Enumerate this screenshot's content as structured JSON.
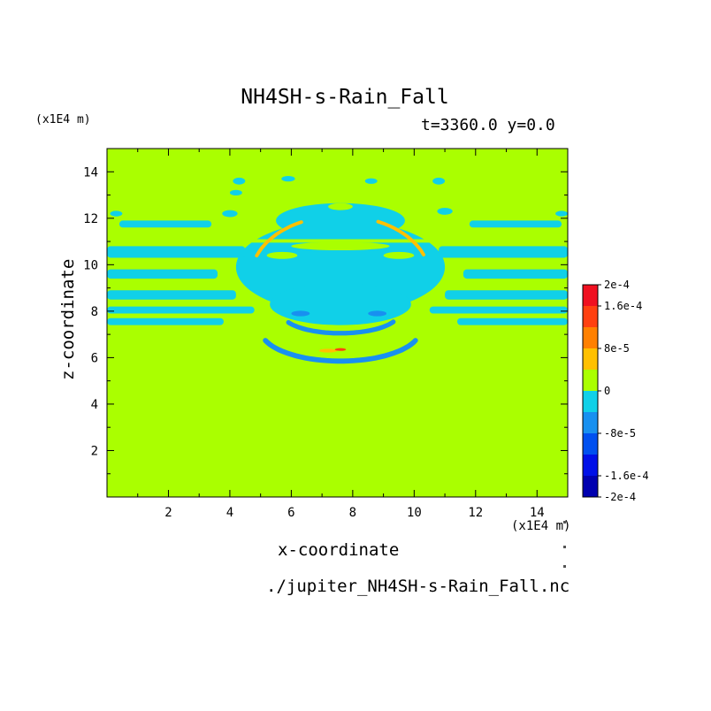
{
  "chart_data": {
    "type": "heatmap",
    "title": "NH4SH-s-Rain_Fall",
    "subtitle": "t=3360.0 y=0.0",
    "xlabel": "x-coordinate",
    "ylabel": "z-coordinate",
    "x_unit": "(x1E4 m)",
    "y_unit": "(x1E4 m)",
    "source": "./jupiter_NH4SH-s-Rain_Fall.nc",
    "xlim": [
      0,
      15
    ],
    "ylim": [
      0,
      15
    ],
    "xticks": [
      2,
      4,
      6,
      8,
      10,
      12,
      14
    ],
    "yticks": [
      2,
      4,
      6,
      8,
      10,
      12,
      14
    ],
    "background_value": 0,
    "colorbar": {
      "levels": [
        -0.0002,
        -0.00016,
        -0.00012,
        -8e-05,
        -4e-05,
        0,
        4e-05,
        8e-05,
        0.00012,
        0.00016,
        0.0002
      ],
      "colors": [
        "#0000b0",
        "#0010e8",
        "#0050f0",
        "#1890f0",
        "#10d0e8",
        "#aaff00",
        "#ffc000",
        "#ff8000",
        "#ff4010",
        "#f01020"
      ],
      "tick_values": [
        0.0002,
        0.00016,
        8e-05,
        0,
        -8e-05,
        -0.00016,
        -0.0002
      ],
      "tick_labels": [
        "2e-4",
        "1.6e-4",
        "8e-5",
        "0",
        "-8e-5",
        "-1.6e-4",
        "-2e-4"
      ]
    },
    "regions": [
      {
        "shape": "ellipse",
        "cx": 7.6,
        "cy": 9.9,
        "rx": 3.4,
        "ry": 2.0,
        "value": -2e-05
      },
      {
        "shape": "ellipse",
        "cx": 7.6,
        "cy": 11.9,
        "rx": 2.1,
        "ry": 0.75,
        "value": -2e-05
      },
      {
        "shape": "ellipse",
        "cx": 7.6,
        "cy": 8.3,
        "rx": 2.3,
        "ry": 0.9,
        "value": -2e-05
      },
      {
        "shape": "band",
        "x0": 0,
        "x1": 4.5,
        "y0": 10.3,
        "y1": 10.8,
        "value": -2e-05
      },
      {
        "shape": "band",
        "x0": 0,
        "x1": 3.6,
        "y0": 9.4,
        "y1": 9.8,
        "value": -2e-05
      },
      {
        "shape": "band",
        "x0": 0,
        "x1": 4.2,
        "y0": 8.5,
        "y1": 8.9,
        "value": -2e-05
      },
      {
        "shape": "band",
        "x0": 0,
        "x1": 4.8,
        "y0": 7.9,
        "y1": 8.2,
        "value": -2e-05
      },
      {
        "shape": "band",
        "x0": 0,
        "x1": 3.8,
        "y0": 7.4,
        "y1": 7.7,
        "value": -2e-05
      },
      {
        "shape": "band",
        "x0": 0.4,
        "x1": 3.4,
        "y0": 11.6,
        "y1": 11.9,
        "value": -2e-05
      },
      {
        "shape": "band",
        "x0": 10.8,
        "x1": 15,
        "y0": 10.3,
        "y1": 10.8,
        "value": -2e-05
      },
      {
        "shape": "band",
        "x0": 11.6,
        "x1": 15,
        "y0": 9.4,
        "y1": 9.8,
        "value": -2e-05
      },
      {
        "shape": "band",
        "x0": 11.0,
        "x1": 15,
        "y0": 8.5,
        "y1": 8.9,
        "value": -2e-05
      },
      {
        "shape": "band",
        "x0": 10.5,
        "x1": 15,
        "y0": 7.9,
        "y1": 8.2,
        "value": -2e-05
      },
      {
        "shape": "band",
        "x0": 11.4,
        "x1": 15,
        "y0": 7.4,
        "y1": 7.7,
        "value": -2e-05
      },
      {
        "shape": "band",
        "x0": 11.8,
        "x1": 14.8,
        "y0": 11.6,
        "y1": 11.9,
        "value": -2e-05
      },
      {
        "shape": "band",
        "x0": 0,
        "x1": 15,
        "y0": 10.95,
        "y1": 11.1,
        "value": 0
      },
      {
        "shape": "ellipse",
        "cx": 7.6,
        "cy": 10.8,
        "rx": 1.6,
        "ry": 0.18,
        "value": 0
      },
      {
        "shape": "ellipse",
        "cx": 5.7,
        "cy": 10.4,
        "rx": 0.5,
        "ry": 0.15,
        "value": 0
      },
      {
        "shape": "ellipse",
        "cx": 9.5,
        "cy": 10.4,
        "rx": 0.5,
        "ry": 0.15,
        "value": 0
      },
      {
        "shape": "ellipse",
        "cx": 7.6,
        "cy": 12.5,
        "rx": 0.4,
        "ry": 0.15,
        "value": 0
      },
      {
        "shape": "arc",
        "cx": 7.6,
        "cy": 7.2,
        "rx": 2.6,
        "ry": 1.35,
        "from": 20,
        "to": 160,
        "width": 0.22,
        "value": -8e-05
      },
      {
        "shape": "arc",
        "cx": 7.6,
        "cy": 7.9,
        "rx": 1.9,
        "ry": 0.85,
        "from": 25,
        "to": 155,
        "width": 0.2,
        "value": -8e-05
      },
      {
        "shape": "ellipse",
        "cx": 6.3,
        "cy": 7.9,
        "rx": 0.3,
        "ry": 0.12,
        "value": -8e-05
      },
      {
        "shape": "ellipse",
        "cx": 8.8,
        "cy": 7.9,
        "rx": 0.3,
        "ry": 0.12,
        "value": -8e-05
      },
      {
        "shape": "arc",
        "cx": 7.6,
        "cy": 9.5,
        "rx": 2.9,
        "ry": 2.6,
        "from": 200,
        "to": 245,
        "width": 0.15,
        "value": 4e-05
      },
      {
        "shape": "arc",
        "cx": 7.6,
        "cy": 9.5,
        "rx": 2.9,
        "ry": 2.6,
        "from": 295,
        "to": 340,
        "width": 0.15,
        "value": 4e-05
      },
      {
        "shape": "ellipse",
        "cx": 7.2,
        "cy": 6.3,
        "rx": 0.3,
        "ry": 0.08,
        "value": 4e-05
      },
      {
        "shape": "ellipse",
        "cx": 7.6,
        "cy": 6.35,
        "rx": 0.18,
        "ry": 0.06,
        "value": 0.00012
      },
      {
        "shape": "ellipse",
        "cx": 4.0,
        "cy": 12.2,
        "rx": 0.25,
        "ry": 0.15,
        "value": -2e-05
      },
      {
        "shape": "ellipse",
        "cx": 4.3,
        "cy": 13.6,
        "rx": 0.2,
        "ry": 0.15,
        "value": -2e-05
      },
      {
        "shape": "ellipse",
        "cx": 4.2,
        "cy": 13.1,
        "rx": 0.2,
        "ry": 0.12,
        "value": -2e-05
      },
      {
        "shape": "ellipse",
        "cx": 10.8,
        "cy": 13.6,
        "rx": 0.2,
        "ry": 0.15,
        "value": -2e-05
      },
      {
        "shape": "ellipse",
        "cx": 11.0,
        "cy": 12.3,
        "rx": 0.25,
        "ry": 0.15,
        "value": -2e-05
      },
      {
        "shape": "ellipse",
        "cx": 5.9,
        "cy": 13.7,
        "rx": 0.22,
        "ry": 0.12,
        "value": -2e-05
      },
      {
        "shape": "ellipse",
        "cx": 8.6,
        "cy": 13.6,
        "rx": 0.2,
        "ry": 0.12,
        "value": -2e-05
      },
      {
        "shape": "ellipse",
        "cx": 0.3,
        "cy": 12.2,
        "rx": 0.2,
        "ry": 0.12,
        "value": -2e-05
      },
      {
        "shape": "ellipse",
        "cx": 14.8,
        "cy": 12.2,
        "rx": 0.2,
        "ry": 0.12,
        "value": -2e-05
      }
    ]
  }
}
